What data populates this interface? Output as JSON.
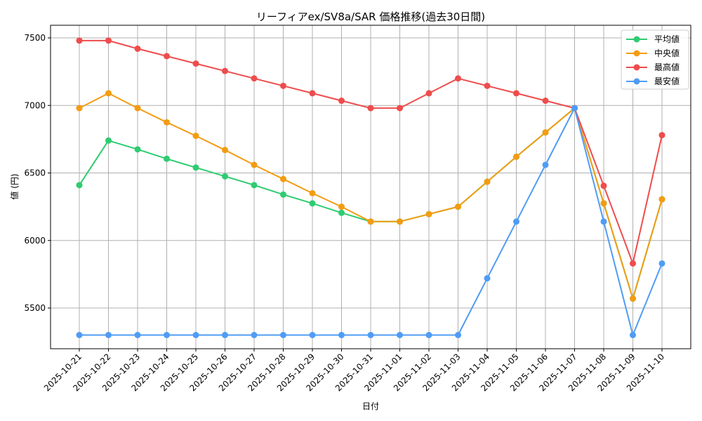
{
  "chart_data": {
    "type": "line",
    "title": "リーフィアex/SV8a/SAR 価格推移(過去30日間)",
    "xlabel": "日付",
    "ylabel": "値 (円)",
    "ylim": [
      5220,
      7600
    ],
    "yticks": [
      5500,
      6000,
      6500,
      7000,
      7500
    ],
    "grid": true,
    "legend_position": "upper right",
    "categories": [
      "2025-10-21",
      "2025-10-22",
      "2025-10-23",
      "2025-10-24",
      "2025-10-25",
      "2025-10-26",
      "2025-10-27",
      "2025-10-28",
      "2025-10-29",
      "2025-10-30",
      "2025-10-31",
      "2025-11-01",
      "2025-11-02",
      "2025-11-03",
      "2025-11-04",
      "2025-11-05",
      "2025-11-06",
      "2025-11-07",
      "2025-11-08",
      "2025-11-09",
      "2025-11-10"
    ],
    "series": [
      {
        "name": "平均値",
        "color": "#2ecc71",
        "values": [
          6410,
          6740,
          6675,
          6605,
          6540,
          6475,
          6410,
          6340,
          6275,
          6205,
          6140,
          6140,
          6195,
          6250,
          6435,
          6620,
          6800,
          6980,
          6275,
          5570,
          6305
        ]
      },
      {
        "name": "中央値",
        "color": "#f39c12",
        "values": [
          6980,
          7090,
          6980,
          6875,
          6775,
          6670,
          6560,
          6455,
          6350,
          6250,
          6140,
          6140,
          6195,
          6250,
          6435,
          6620,
          6800,
          6980,
          6275,
          5570,
          6305
        ]
      },
      {
        "name": "最高値",
        "color": "#ef4c4c",
        "values": [
          7480,
          7480,
          7420,
          7365,
          7310,
          7255,
          7200,
          7145,
          7090,
          7035,
          6980,
          6980,
          7090,
          7200,
          7145,
          7090,
          7035,
          6980,
          6405,
          5830,
          6780
        ]
      },
      {
        "name": "最安値",
        "color": "#4f9cf5",
        "values": [
          5300,
          5300,
          5300,
          5300,
          5300,
          5300,
          5300,
          5300,
          5300,
          5300,
          5300,
          5300,
          5300,
          5300,
          5720,
          6140,
          6560,
          6980,
          6140,
          5300,
          5830
        ]
      }
    ]
  }
}
